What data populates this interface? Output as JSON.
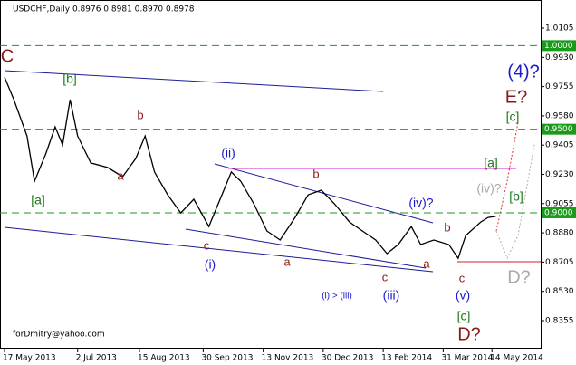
{
  "chart_data": {
    "type": "line",
    "title": "USDCHF,Daily  0.8976 0.8981 0.8970 0.8978",
    "footer": "forDmitry@yahoo.com",
    "xlim": [
      -2.4,
      286
    ],
    "ylim": [
      0.8187,
      1.0273
    ],
    "xticks": [
      {
        "value": 0,
        "label": "17 May 2013"
      },
      {
        "value": 39,
        "label": "2 Jul 2013"
      },
      {
        "value": 72,
        "label": "15 Aug 2013"
      },
      {
        "value": 106,
        "label": "30 Sep 2013"
      },
      {
        "value": 138,
        "label": "13 Nov 2013"
      },
      {
        "value": 170,
        "label": "30 Dec 2013"
      },
      {
        "value": 202,
        "label": "13 Feb 2014"
      },
      {
        "value": 234,
        "label": "31 Mar 2014"
      },
      {
        "value": 260,
        "label": "14 May 2014"
      }
    ],
    "yticks": [
      {
        "value": 1.0105,
        "label": "1.0105"
      },
      {
        "value": 0.993,
        "label": "0.9930"
      },
      {
        "value": 0.9755,
        "label": "0.9755"
      },
      {
        "value": 0.958,
        "label": "0.9580"
      },
      {
        "value": 0.9405,
        "label": "0.9405"
      },
      {
        "value": 0.923,
        "label": "0.9230"
      },
      {
        "value": 0.9055,
        "label": "0.9055"
      },
      {
        "value": 0.888,
        "label": "0.8880"
      },
      {
        "value": 0.8705,
        "label": "0.8705"
      },
      {
        "value": 0.853,
        "label": "0.8530"
      },
      {
        "value": 0.8355,
        "label": "0.8355"
      }
    ],
    "levels": [
      {
        "value": 1.0,
        "label": "1.0000"
      },
      {
        "value": 0.95,
        "label": "0.9500"
      },
      {
        "value": 0.9,
        "label": "0.9000"
      }
    ],
    "series": [
      {
        "name": "USDCHF",
        "color": "#000000",
        "x": [
          0,
          5,
          12,
          16,
          22,
          27,
          31,
          35,
          39,
          46,
          55,
          63,
          70,
          75,
          80,
          87,
          94,
          101,
          109,
          116,
          121,
          126,
          133,
          140,
          147,
          155,
          162,
          169,
          176,
          184,
          191,
          198,
          204,
          210,
          217,
          222,
          229,
          237,
          242,
          246,
          254,
          258,
          262
        ],
        "values": [
          0.9812,
          0.9677,
          0.946,
          0.9189,
          0.9352,
          0.9514,
          0.9406,
          0.9677,
          0.946,
          0.9298,
          0.9271,
          0.9216,
          0.9325,
          0.946,
          0.9244,
          0.9108,
          0.8999,
          0.9081,
          0.8918,
          0.9108,
          0.9244,
          0.9189,
          0.9054,
          0.8891,
          0.8837,
          0.8972,
          0.9108,
          0.9135,
          0.9054,
          0.8945,
          0.8891,
          0.8837,
          0.8756,
          0.881,
          0.8918,
          0.881,
          0.8837,
          0.881,
          0.8728,
          0.8864,
          0.8945,
          0.8972,
          0.8978
        ]
      }
    ],
    "annotations": [
      "C",
      "[b]",
      "b",
      "a",
      "[a]",
      "(ii)",
      "c",
      "(i)",
      "a",
      "b",
      "(iv)?",
      "(i) > (iii)",
      "(iii)",
      "c",
      "a",
      "b",
      "c",
      "(v)",
      "[c]",
      "D?",
      "(4)?",
      "E?",
      "[c]",
      "[a]",
      "(iv)?",
      "[b]",
      "D?"
    ]
  }
}
